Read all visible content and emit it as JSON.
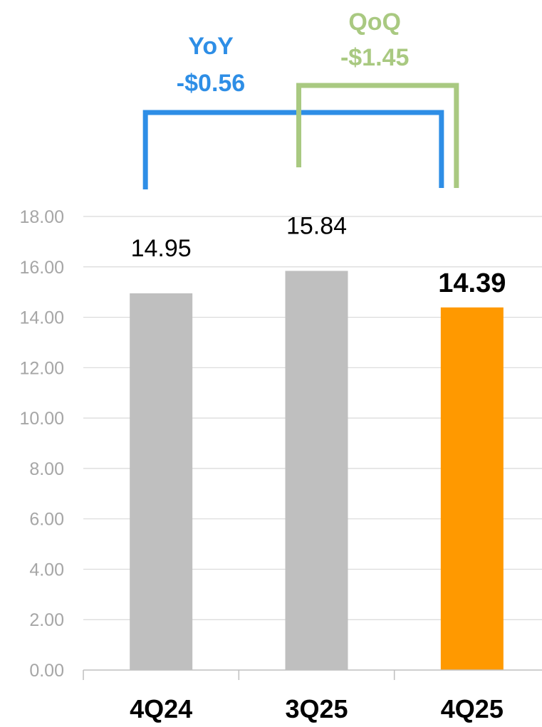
{
  "chart_data": {
    "type": "bar",
    "categories": [
      "4Q24",
      "3Q25",
      "4Q25"
    ],
    "values": [
      14.95,
      15.84,
      14.39
    ],
    "data_labels": [
      "14.95",
      "15.84",
      "14.39"
    ],
    "bar_colors": [
      "#bfbfbf",
      "#bfbfbf",
      "#ff9900"
    ],
    "highlight_category": "4Q25",
    "ylim": [
      0,
      18
    ],
    "y_tick_labels": [
      "0.00",
      "2.00",
      "4.00",
      "6.00",
      "8.00",
      "10.00",
      "12.00",
      "14.00",
      "16.00",
      "18.00"
    ],
    "grid": true,
    "legend": "none",
    "title": "",
    "xlabel": "",
    "ylabel": "",
    "annotations": {
      "yoy": {
        "label": "YoY",
        "value": "-$0.56",
        "from": "4Q24",
        "to": "4Q25",
        "color": "#2e8ee6"
      },
      "qoq": {
        "label": "QoQ",
        "value": "-$1.45",
        "from": "3Q25",
        "to": "4Q25",
        "color": "#a9c981"
      }
    }
  }
}
